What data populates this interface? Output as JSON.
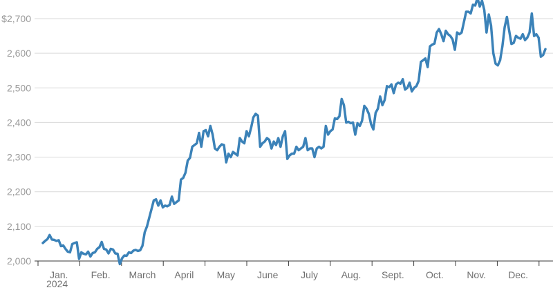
{
  "chart_data": {
    "type": "line",
    "title": "",
    "xlabel": "",
    "ylabel": "",
    "ylim": [
      2000,
      2750
    ],
    "y_ticks": [
      2000,
      2100,
      2200,
      2300,
      2400,
      2500,
      2600,
      2700
    ],
    "y_tick_labels": [
      "2,000",
      "2,100",
      "2,200",
      "2,300",
      "2,400",
      "2,500",
      "2,600",
      "$2,700"
    ],
    "x_start_label": "2024",
    "month_labels": [
      "Jan.",
      "Feb.",
      "March",
      "April",
      "May",
      "June",
      "July",
      "Aug.",
      "Sept.",
      "Oct.",
      "Nov.",
      "Dec."
    ],
    "grid": true,
    "legend": "none",
    "line_color": "#3b82b8",
    "series": [
      {
        "values": [
          2052,
          2058,
          2063,
          2075,
          2062,
          2061,
          2058,
          2060,
          2043,
          2045,
          2035,
          2027,
          2025,
          2049,
          2052,
          2054,
          2006,
          2025,
          2021,
          2019,
          2027,
          2013,
          2023,
          2025,
          2035,
          2040,
          2055,
          2035,
          2033,
          2022,
          2035,
          2033,
          2022,
          2021,
          1991,
          2008,
          2016,
          2015,
          2025,
          2023,
          2030,
          2032,
          2029,
          2031,
          2044,
          2083,
          2100,
          2125,
          2150,
          2175,
          2178,
          2160,
          2175,
          2155,
          2160,
          2158,
          2162,
          2186,
          2165,
          2170,
          2175,
          2235,
          2240,
          2255,
          2290,
          2298,
          2330,
          2335,
          2340,
          2370,
          2330,
          2375,
          2378,
          2360,
          2390,
          2365,
          2325,
          2320,
          2330,
          2337,
          2335,
          2285,
          2310,
          2300,
          2315,
          2310,
          2305,
          2355,
          2345,
          2340,
          2375,
          2360,
          2385,
          2415,
          2425,
          2420,
          2330,
          2340,
          2345,
          2355,
          2350,
          2325,
          2345,
          2335,
          2355,
          2330,
          2360,
          2375,
          2295,
          2305,
          2310,
          2310,
          2330,
          2320,
          2325,
          2330,
          2355,
          2320,
          2325,
          2325,
          2300,
          2325,
          2330,
          2325,
          2330,
          2390,
          2365,
          2375,
          2380,
          2412,
          2410,
          2418,
          2468,
          2450,
          2400,
          2402,
          2398,
          2400,
          2365,
          2398,
          2390,
          2405,
          2448,
          2440,
          2425,
          2395,
          2380,
          2428,
          2440,
          2475,
          2450,
          2465,
          2505,
          2502,
          2510,
          2485,
          2510,
          2515,
          2512,
          2525,
          2495,
          2500,
          2515,
          2490,
          2500,
          2505,
          2520,
          2575,
          2580,
          2585,
          2560,
          2620,
          2625,
          2628,
          2660,
          2670,
          2655,
          2635,
          2665,
          2655,
          2650,
          2640,
          2610,
          2660,
          2655,
          2660,
          2690,
          2720,
          2720,
          2715,
          2740,
          2738,
          2760,
          2735,
          2752,
          2725,
          2660,
          2712,
          2680,
          2600,
          2570,
          2565,
          2580,
          2620,
          2675,
          2705,
          2665,
          2627,
          2630,
          2650,
          2645,
          2642,
          2655,
          2638,
          2645,
          2660,
          2715,
          2650,
          2655,
          2645,
          2590,
          2595,
          2612
        ]
      }
    ]
  }
}
